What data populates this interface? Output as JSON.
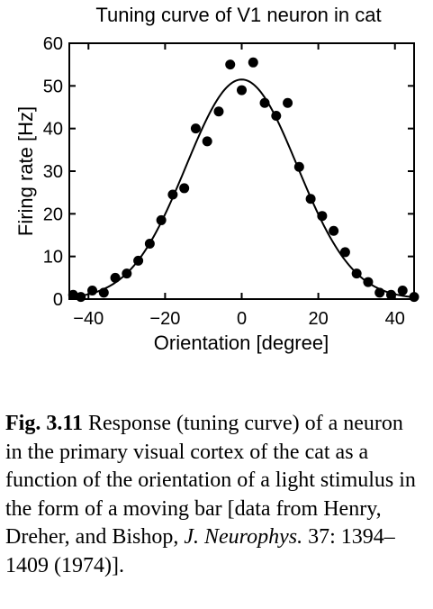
{
  "chart_data": {
    "type": "scatter",
    "title": "Tuning curve of V1 neuron in cat",
    "xlabel": "Orientation [degree]",
    "ylabel": "Firing rate [Hz]",
    "xlim": [
      -45,
      45
    ],
    "ylim": [
      0,
      60
    ],
    "xticks": [
      -40,
      -20,
      0,
      20,
      40
    ],
    "xtick_labels": [
      "−40",
      "−20",
      "0",
      "20",
      "40"
    ],
    "yticks": [
      0,
      10,
      20,
      30,
      40,
      50,
      60
    ],
    "ytick_labels": [
      "0",
      "10",
      "20",
      "30",
      "40",
      "50",
      "60"
    ],
    "grid": false,
    "legend": "none",
    "series": [
      {
        "kind": "points",
        "x": [
          -44,
          -42,
          -39,
          -36,
          -33,
          -30,
          -27,
          -24,
          -21,
          -18,
          -15,
          -12,
          -9,
          -6,
          -3,
          0,
          3,
          6,
          9,
          12,
          15,
          18,
          21,
          24,
          27,
          30,
          33,
          36,
          39,
          42,
          45
        ],
        "y": [
          1,
          0.5,
          2,
          1.5,
          5,
          6,
          9,
          13,
          18.5,
          24.5,
          26,
          40,
          37,
          44,
          55,
          49,
          55.5,
          46,
          43,
          46,
          31,
          23.5,
          19.5,
          16,
          11,
          6,
          4,
          1.5,
          1,
          2,
          0.5
        ]
      },
      {
        "kind": "fit",
        "model": "gaussian",
        "amplitude": 51.5,
        "center": 0,
        "sigma": 14.5
      }
    ]
  },
  "caption": {
    "figure_label": "Fig. 3.11",
    "text_before_journal": " Response (tuning curve) of a neuron in the primary visual cortex of the cat as a function of the orientation of a light stimulus in the form of a moving bar [data from Henry, Dreher, and Bishop, ",
    "journal": "J. Neurophys.",
    "text_after_journal": " 37: 1394–1409 (1974)]."
  }
}
